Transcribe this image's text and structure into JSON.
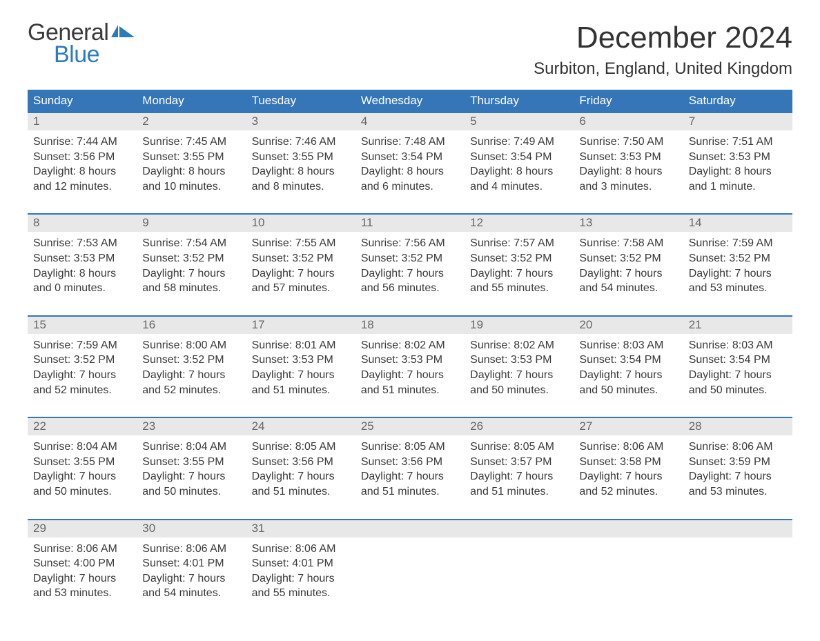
{
  "logo": {
    "word1": "General",
    "word2": "Blue"
  },
  "title": "December 2024",
  "subtitle": "Surbiton, England, United Kingdom",
  "colors": {
    "header_bg": "#3576b8",
    "header_text": "#ffffff",
    "daynum_bg": "#e8e8e8",
    "daynum_text": "#666666",
    "body_text": "#3a3a3a",
    "week_border": "#3576b8",
    "logo_accent": "#2b7bbf",
    "page_bg": "#ffffff"
  },
  "typography": {
    "title_fontsize": 44,
    "subtitle_fontsize": 24,
    "dayhead_fontsize": 17,
    "cell_fontsize": 16,
    "logo_fontsize": 34
  },
  "day_headers": [
    "Sunday",
    "Monday",
    "Tuesday",
    "Wednesday",
    "Thursday",
    "Friday",
    "Saturday"
  ],
  "weeks": [
    {
      "days": [
        {
          "num": "1",
          "sunrise": "7:44 AM",
          "sunset": "3:56 PM",
          "daylight": "8 hours\nand 12 minutes."
        },
        {
          "num": "2",
          "sunrise": "7:45 AM",
          "sunset": "3:55 PM",
          "daylight": "8 hours\nand 10 minutes."
        },
        {
          "num": "3",
          "sunrise": "7:46 AM",
          "sunset": "3:55 PM",
          "daylight": "8 hours\nand 8 minutes."
        },
        {
          "num": "4",
          "sunrise": "7:48 AM",
          "sunset": "3:54 PM",
          "daylight": "8 hours\nand 6 minutes."
        },
        {
          "num": "5",
          "sunrise": "7:49 AM",
          "sunset": "3:54 PM",
          "daylight": "8 hours\nand 4 minutes."
        },
        {
          "num": "6",
          "sunrise": "7:50 AM",
          "sunset": "3:53 PM",
          "daylight": "8 hours\nand 3 minutes."
        },
        {
          "num": "7",
          "sunrise": "7:51 AM",
          "sunset": "3:53 PM",
          "daylight": "8 hours\nand 1 minute."
        }
      ]
    },
    {
      "days": [
        {
          "num": "8",
          "sunrise": "7:53 AM",
          "sunset": "3:53 PM",
          "daylight": "8 hours\nand 0 minutes."
        },
        {
          "num": "9",
          "sunrise": "7:54 AM",
          "sunset": "3:52 PM",
          "daylight": "7 hours\nand 58 minutes."
        },
        {
          "num": "10",
          "sunrise": "7:55 AM",
          "sunset": "3:52 PM",
          "daylight": "7 hours\nand 57 minutes."
        },
        {
          "num": "11",
          "sunrise": "7:56 AM",
          "sunset": "3:52 PM",
          "daylight": "7 hours\nand 56 minutes."
        },
        {
          "num": "12",
          "sunrise": "7:57 AM",
          "sunset": "3:52 PM",
          "daylight": "7 hours\nand 55 minutes."
        },
        {
          "num": "13",
          "sunrise": "7:58 AM",
          "sunset": "3:52 PM",
          "daylight": "7 hours\nand 54 minutes."
        },
        {
          "num": "14",
          "sunrise": "7:59 AM",
          "sunset": "3:52 PM",
          "daylight": "7 hours\nand 53 minutes."
        }
      ]
    },
    {
      "days": [
        {
          "num": "15",
          "sunrise": "7:59 AM",
          "sunset": "3:52 PM",
          "daylight": "7 hours\nand 52 minutes."
        },
        {
          "num": "16",
          "sunrise": "8:00 AM",
          "sunset": "3:52 PM",
          "daylight": "7 hours\nand 52 minutes."
        },
        {
          "num": "17",
          "sunrise": "8:01 AM",
          "sunset": "3:53 PM",
          "daylight": "7 hours\nand 51 minutes."
        },
        {
          "num": "18",
          "sunrise": "8:02 AM",
          "sunset": "3:53 PM",
          "daylight": "7 hours\nand 51 minutes."
        },
        {
          "num": "19",
          "sunrise": "8:02 AM",
          "sunset": "3:53 PM",
          "daylight": "7 hours\nand 50 minutes."
        },
        {
          "num": "20",
          "sunrise": "8:03 AM",
          "sunset": "3:54 PM",
          "daylight": "7 hours\nand 50 minutes."
        },
        {
          "num": "21",
          "sunrise": "8:03 AM",
          "sunset": "3:54 PM",
          "daylight": "7 hours\nand 50 minutes."
        }
      ]
    },
    {
      "days": [
        {
          "num": "22",
          "sunrise": "8:04 AM",
          "sunset": "3:55 PM",
          "daylight": "7 hours\nand 50 minutes."
        },
        {
          "num": "23",
          "sunrise": "8:04 AM",
          "sunset": "3:55 PM",
          "daylight": "7 hours\nand 50 minutes."
        },
        {
          "num": "24",
          "sunrise": "8:05 AM",
          "sunset": "3:56 PM",
          "daylight": "7 hours\nand 51 minutes."
        },
        {
          "num": "25",
          "sunrise": "8:05 AM",
          "sunset": "3:56 PM",
          "daylight": "7 hours\nand 51 minutes."
        },
        {
          "num": "26",
          "sunrise": "8:05 AM",
          "sunset": "3:57 PM",
          "daylight": "7 hours\nand 51 minutes."
        },
        {
          "num": "27",
          "sunrise": "8:06 AM",
          "sunset": "3:58 PM",
          "daylight": "7 hours\nand 52 minutes."
        },
        {
          "num": "28",
          "sunrise": "8:06 AM",
          "sunset": "3:59 PM",
          "daylight": "7 hours\nand 53 minutes."
        }
      ]
    },
    {
      "days": [
        {
          "num": "29",
          "sunrise": "8:06 AM",
          "sunset": "4:00 PM",
          "daylight": "7 hours\nand 53 minutes."
        },
        {
          "num": "30",
          "sunrise": "8:06 AM",
          "sunset": "4:01 PM",
          "daylight": "7 hours\nand 54 minutes."
        },
        {
          "num": "31",
          "sunrise": "8:06 AM",
          "sunset": "4:01 PM",
          "daylight": "7 hours\nand 55 minutes."
        },
        {
          "num": "",
          "sunrise": "",
          "sunset": "",
          "daylight": ""
        },
        {
          "num": "",
          "sunrise": "",
          "sunset": "",
          "daylight": ""
        },
        {
          "num": "",
          "sunrise": "",
          "sunset": "",
          "daylight": ""
        },
        {
          "num": "",
          "sunrise": "",
          "sunset": "",
          "daylight": ""
        }
      ]
    }
  ],
  "labels": {
    "sunrise": "Sunrise: ",
    "sunset": "Sunset: ",
    "daylight": "Daylight: "
  }
}
